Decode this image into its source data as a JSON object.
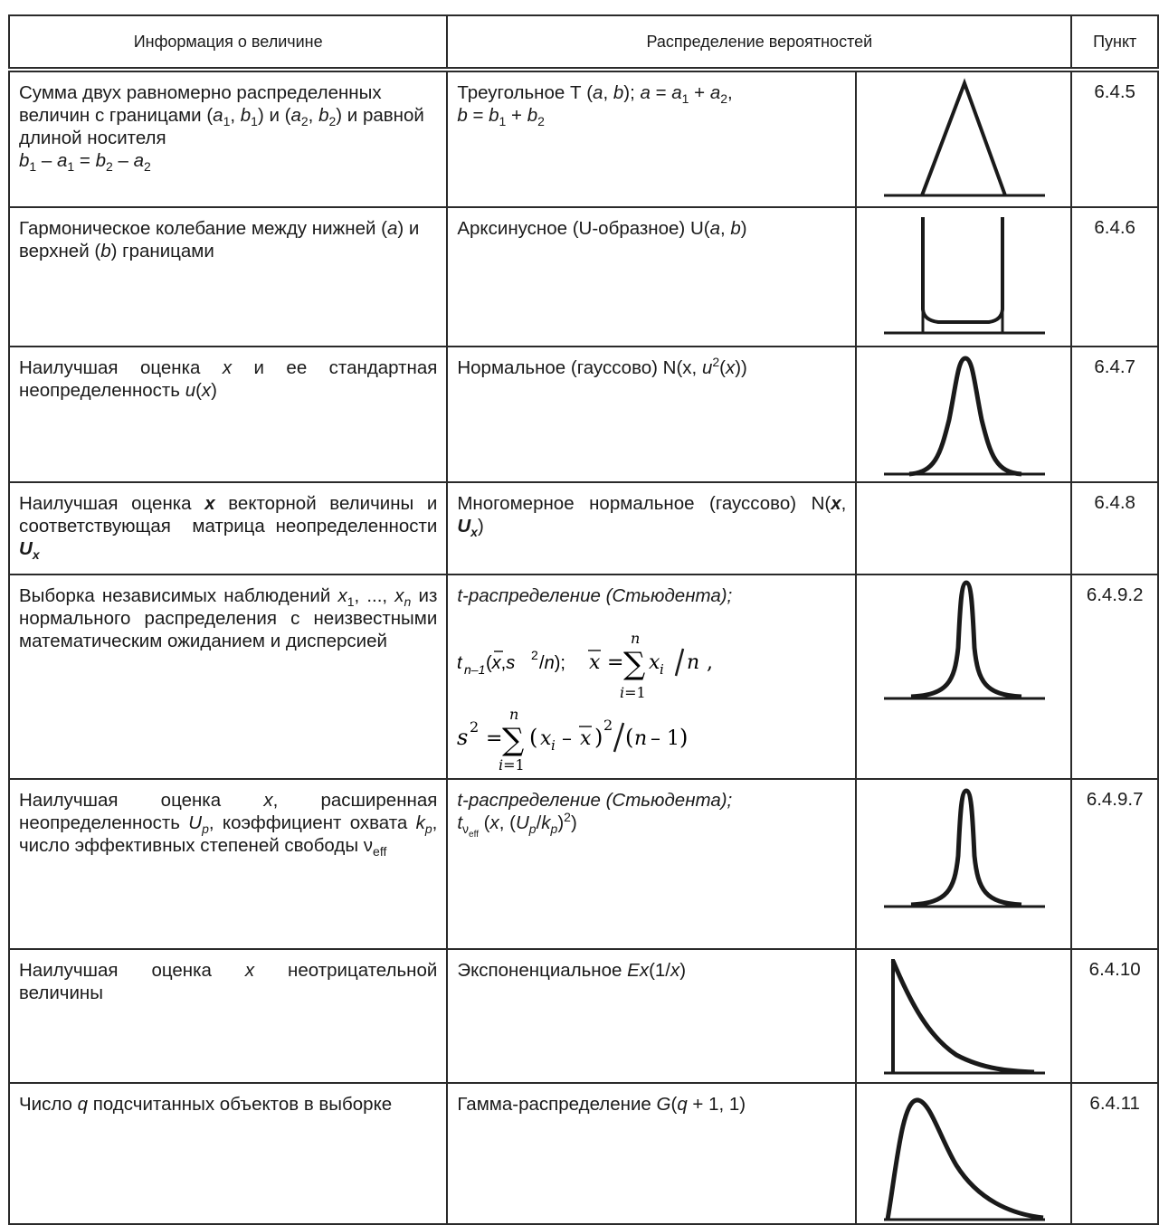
{
  "header": {
    "col1": "Информация о величине",
    "col2": "Распределение вероятностей",
    "col3": "Пункт"
  },
  "rows": [
    {
      "info_a": "Сумма двух равномерно распределенных величин с границами (",
      "info_b": "a",
      "info_c": "1",
      "dist_name": "Треугольное Т",
      "punkt": "6.4.5",
      "icon": "triangle-distribution"
    },
    {
      "info": "Гармоническое колебание между нижней (a) и верхней (b) границами",
      "dist_name": "Арксинусное (U-образное) U",
      "punkt": "6.4.6",
      "icon": "arcsine-distribution"
    },
    {
      "info": "Наилучшая оценка x и ее стандартная неопределенность u(x)",
      "dist_name": "Нормальное (гауссово) N",
      "punkt": "6.4.7",
      "icon": "normal-distribution"
    },
    {
      "info": "Наилучшая оценка x векторной величины и соответствующая матрица неопределенности U_x",
      "dist_name": "Многомерное нормальное (гауссово)",
      "punkt": "6.4.8"
    },
    {
      "info": "Выборка независимых наблюдений x_1, ..., x_n из нормального распределения с неизвестными математическим ожиданием и дисперсией",
      "dist_name": "t-распределение (Стьюдента);",
      "punkt": "6.4.9.2",
      "icon": "student-t-distribution"
    },
    {
      "info": "Наилучшая оценка x, расширенная неопределенность U_p, коэффициент охвата k_p, число эффективных степеней свободы ν_eff",
      "dist_name": "t-распределение (Стьюдента);",
      "punkt": "6.4.9.7",
      "icon": "student-t-distribution"
    },
    {
      "info": "Наилучшая оценка x неотрицательной величины",
      "dist_name": "Экспоненциальное",
      "punkt": "6.4.10",
      "icon": "exponential-distribution"
    },
    {
      "info": "Число q подсчитанных объектов в выборке",
      "dist_name": "Гамма-распределение",
      "punkt": "6.4.11",
      "icon": "gamma-distribution"
    }
  ]
}
